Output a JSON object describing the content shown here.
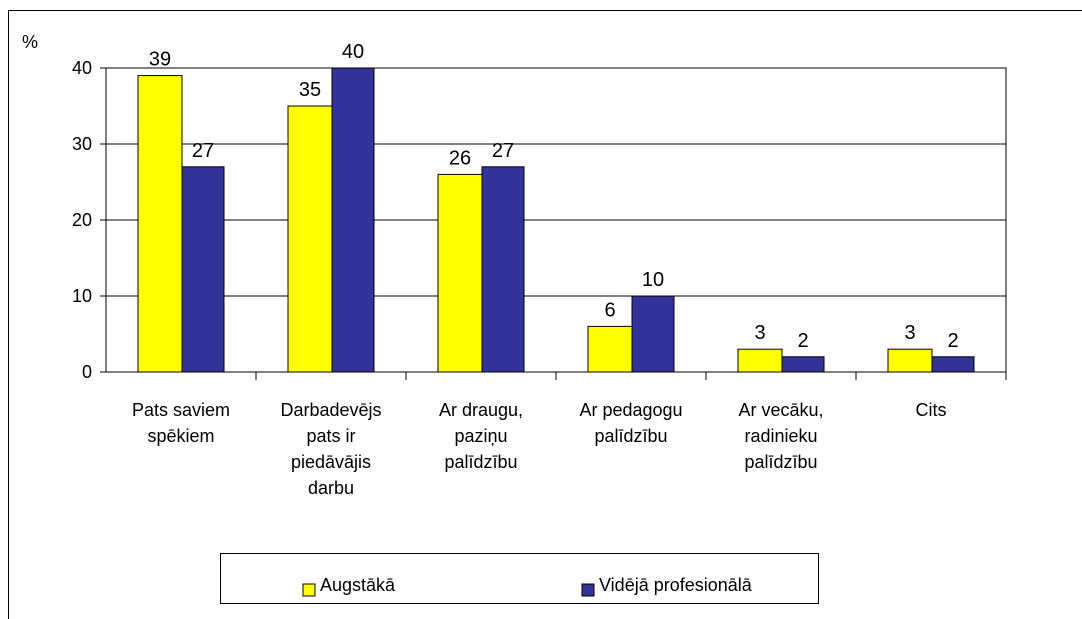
{
  "chart_data": {
    "type": "bar",
    "y_label": "%",
    "categories": [
      "Pats saviem\nspēkiem",
      "Darbadevējs\npats ir\npiedāvājis\ndarbu",
      "Ar draugu,\npaziņu\npalīdzību",
      "Ar pedagogu\npalīdzību",
      "Ar vecāku,\nradinieku\npalīdzību",
      "Cits"
    ],
    "series": [
      {
        "name": "Augstākā",
        "color": "#ffff00",
        "values": [
          39,
          35,
          26,
          6,
          3,
          3
        ]
      },
      {
        "name": "Vidējā profesionālā",
        "color": "#333399",
        "values": [
          27,
          40,
          27,
          10,
          2,
          2
        ]
      }
    ],
    "ylim": [
      0,
      40
    ],
    "yticks": [
      0,
      10,
      20,
      30,
      40
    ],
    "grid": true,
    "legend": "bottom"
  }
}
